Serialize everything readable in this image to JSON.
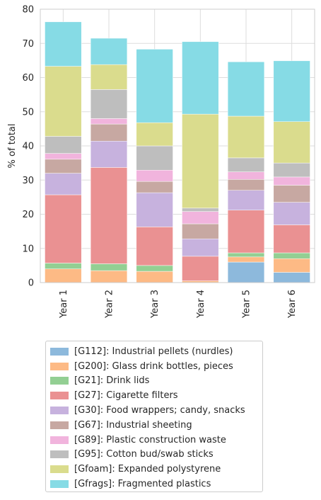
{
  "chart_data": {
    "type": "bar",
    "stacked": true,
    "title": "",
    "xlabel": "",
    "ylabel": "% of total",
    "ylim": [
      0,
      80
    ],
    "yticks": [
      0,
      10,
      20,
      30,
      40,
      50,
      60,
      70,
      80
    ],
    "grid": true,
    "legend_position": "below",
    "categories": [
      "Year 1",
      "Year 2",
      "Year 3",
      "Year 4",
      "Year 5",
      "Year 6"
    ],
    "series": [
      {
        "name": "[G112]: Industrial pellets (nurdles)",
        "color": "#8db9dc",
        "values": [
          0,
          0,
          0,
          0,
          6.0,
          3.0
        ]
      },
      {
        "name": "[G200]: Glass drink bottles, pieces",
        "color": "#fdba85",
        "values": [
          4.0,
          3.5,
          3.3,
          0.5,
          1.5,
          4.0
        ]
      },
      {
        "name": "[G21]: Drink lids",
        "color": "#93cf93",
        "values": [
          1.7,
          2.0,
          1.7,
          0,
          1.2,
          1.7
        ]
      },
      {
        "name": "[G27]: Cigarette filters",
        "color": "#ea9192",
        "values": [
          20.0,
          28.2,
          11.3,
          7.2,
          12.5,
          8.2
        ]
      },
      {
        "name": "[G30]: Food wrappers; candy, snacks",
        "color": "#c7b2de",
        "values": [
          6.3,
          7.7,
          10.0,
          5.1,
          5.8,
          6.6
        ]
      },
      {
        "name": "[G67]: Industrial sheeting",
        "color": "#c7a8a2",
        "values": [
          4.1,
          5.0,
          3.3,
          4.4,
          3.2,
          5.0
        ]
      },
      {
        "name": "[G89]: Plastic construction waste",
        "color": "#f1b4dd",
        "values": [
          1.7,
          1.6,
          3.3,
          3.6,
          2.2,
          2.4
        ]
      },
      {
        "name": "[G95]: Cotton bud/swab sticks",
        "color": "#bebebe",
        "values": [
          5.0,
          8.5,
          7.1,
          1.0,
          4.1,
          4.1
        ]
      },
      {
        "name": "[Gfoam]: Expanded polystyrene",
        "color": "#dadc8d",
        "values": [
          20.5,
          7.3,
          6.8,
          27.5,
          12.2,
          12.1
        ]
      },
      {
        "name": "[Gfrags]: Fragmented plastics",
        "color": "#86dbe5",
        "values": [
          13.0,
          7.7,
          21.5,
          21.2,
          15.9,
          17.8
        ]
      }
    ]
  }
}
